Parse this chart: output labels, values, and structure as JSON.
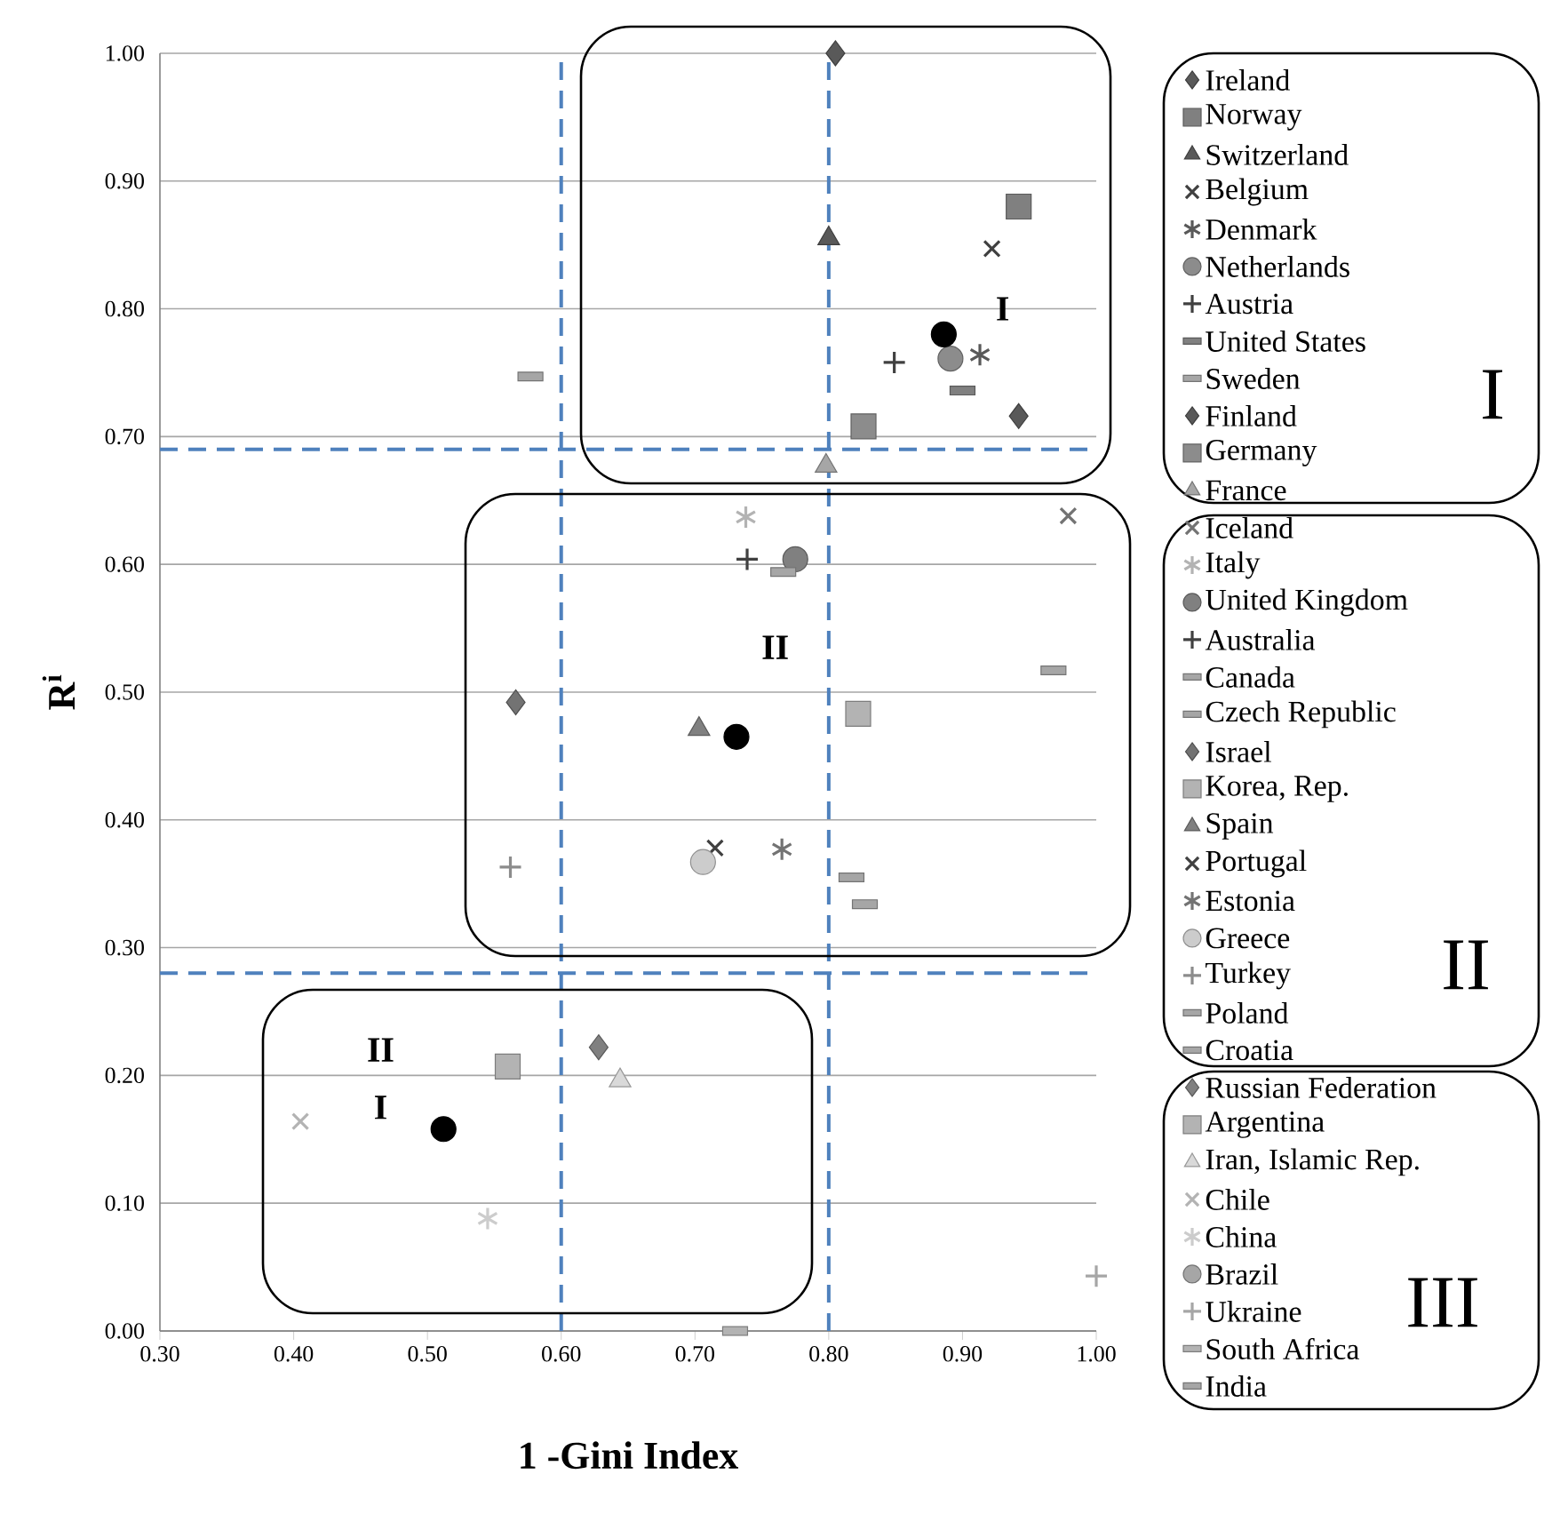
{
  "chart_data": {
    "type": "scatter",
    "xlabel": "1 -Gini Index",
    "ylabel": "R$^{i}$",
    "xlim": [
      0.3,
      1.0
    ],
    "ylim": [
      0,
      1.0
    ],
    "xticks": [
      {
        "value": 0.3,
        "label": "0.30"
      },
      {
        "value": 0.4,
        "label": "0.40"
      },
      {
        "value": 0.5,
        "label": "0.50"
      },
      {
        "value": 0.6,
        "label": "0.60"
      },
      {
        "value": 0.7,
        "label": "0.70"
      },
      {
        "value": 0.8,
        "label": "0.80"
      },
      {
        "value": 0.9,
        "label": "0.90"
      },
      {
        "value": 1.0,
        "label": "1.00"
      }
    ],
    "yticks": [
      {
        "value": 0,
        "label": "0.00"
      },
      {
        "value": 0.1,
        "label": "0.10"
      },
      {
        "value": 0.2,
        "label": "0.20"
      },
      {
        "value": 0.3,
        "label": "0.30"
      },
      {
        "value": 0.4,
        "label": "0.40"
      },
      {
        "value": 0.5,
        "label": "0.50"
      },
      {
        "value": 0.6,
        "label": "0.60"
      },
      {
        "value": 0.7,
        "label": "0.70"
      },
      {
        "value": 0.8,
        "label": "0.80"
      },
      {
        "value": 0.9,
        "label": "0.90"
      },
      {
        "value": 1.0,
        "label": "1.00"
      }
    ],
    "grid": "y",
    "legend": "right",
    "ref_lines": [
      {
        "axis": "y",
        "value": 0.69,
        "color": "#4f81bd",
        "line_style": "dashed"
      },
      {
        "axis": "y",
        "value": 0.28,
        "color": "#4f81bd",
        "line_style": "dashed"
      },
      {
        "axis": "x",
        "value": 0.6,
        "color": "#4f81bd",
        "line_style": "dashed"
      },
      {
        "axis": "x",
        "value": 0.8,
        "color": "#4f81bd",
        "line_style": "dashed"
      }
    ],
    "annotations": [
      "I",
      "II",
      "II",
      "I",
      "I",
      "II",
      "III"
    ],
    "series": [
      {
        "name": "Ireland",
        "marker": "diamond",
        "color": "#595959",
        "x": [
          0.805
        ],
        "values": [
          1.0
        ]
      },
      {
        "name": "Norway",
        "marker": "square",
        "color": "#808080",
        "x": [
          0.942
        ],
        "values": [
          0.88
        ]
      },
      {
        "name": "Switzerland",
        "marker": "triangle",
        "color": "#595959",
        "x": [
          0.8
        ],
        "values": [
          0.855
        ]
      },
      {
        "name": "Belgium",
        "marker": "cross",
        "color": "#404040",
        "x": [
          0.922
        ],
        "values": [
          0.847
        ]
      },
      {
        "name": "Denmark",
        "marker": "cross",
        "color": "#595959",
        "x": [
          0.913
        ],
        "values": [
          0.764
        ]
      },
      {
        "name": "Netherlands",
        "marker": "circle",
        "color": "#8c8c8c",
        "x": [
          0.891
        ],
        "values": [
          0.761
        ]
      },
      {
        "name": "Austria",
        "marker": "plus",
        "color": "#404040",
        "x": [
          0.849
        ],
        "values": [
          0.758
        ]
      },
      {
        "name": "United States",
        "marker": "square",
        "color": "#808080",
        "x": [
          0.9
        ],
        "values": [
          0.736
        ]
      },
      {
        "name": "Sweden",
        "marker": "square",
        "color": "#a6a6a6",
        "x": [
          0.577
        ],
        "values": [
          0.747
        ]
      },
      {
        "name": "Finland",
        "marker": "diamond",
        "color": "#595959",
        "x": [
          0.942
        ],
        "values": [
          0.716
        ]
      },
      {
        "name": "Germany",
        "marker": "square",
        "color": "#8c8c8c",
        "x": [
          0.826
        ],
        "values": [
          0.708
        ]
      },
      {
        "name": "France",
        "marker": "triangle",
        "color": "#a6a6a6",
        "x": [
          0.798
        ],
        "values": [
          0.677
        ]
      },
      {
        "name": "Iceland",
        "marker": "cross",
        "color": "#737373",
        "x": [
          0.979
        ],
        "values": [
          0.638
        ]
      },
      {
        "name": "Italy",
        "marker": "cross",
        "color": "#b3b3b3",
        "x": [
          0.738
        ],
        "values": [
          0.637
        ]
      },
      {
        "name": "United Kingdom",
        "marker": "circle",
        "color": "#808080",
        "x": [
          0.775
        ],
        "values": [
          0.604
        ]
      },
      {
        "name": "Australia",
        "marker": "plus",
        "color": "#404040",
        "x": [
          0.739
        ],
        "values": [
          0.604
        ]
      },
      {
        "name": "Canada",
        "marker": "square",
        "color": "#a6a6a6",
        "x": [
          0.968
        ],
        "values": [
          0.517
        ]
      },
      {
        "name": "Czech Republic",
        "marker": "square",
        "color": "#a6a6a6",
        "x": [
          0.766
        ],
        "values": [
          0.594
        ]
      },
      {
        "name": "Israel",
        "marker": "diamond",
        "color": "#737373",
        "x": [
          0.566
        ],
        "values": [
          0.492
        ]
      },
      {
        "name": "Korea, Rep.",
        "marker": "square",
        "color": "#b3b3b3",
        "x": [
          0.822
        ],
        "values": [
          0.483
        ]
      },
      {
        "name": "Spain",
        "marker": "triangle",
        "color": "#808080",
        "x": [
          0.703
        ],
        "values": [
          0.471
        ]
      },
      {
        "name": "Portugal",
        "marker": "cross",
        "color": "#404040",
        "x": [
          0.715
        ],
        "values": [
          0.378
        ]
      },
      {
        "name": "Estonia",
        "marker": "cross",
        "color": "#737373",
        "x": [
          0.765
        ],
        "values": [
          0.377
        ]
      },
      {
        "name": "Greece",
        "marker": "circle",
        "color": "#cccccc",
        "x": [
          0.706
        ],
        "values": [
          0.367
        ]
      },
      {
        "name": "Turkey",
        "marker": "plus",
        "color": "#8c8c8c",
        "x": [
          0.562
        ],
        "values": [
          0.363
        ]
      },
      {
        "name": "Poland",
        "marker": "square",
        "color": "#a6a6a6",
        "x": [
          0.827
        ],
        "values": [
          0.334
        ]
      },
      {
        "name": "Croatia",
        "marker": "square",
        "color": "#a6a6a6",
        "x": [
          0.817
        ],
        "values": [
          0.355
        ]
      },
      {
        "name": "Russian Federation",
        "marker": "diamond",
        "color": "#808080",
        "x": [
          0.628
        ],
        "values": [
          0.222
        ]
      },
      {
        "name": "Argentina",
        "marker": "square",
        "color": "#b3b3b3",
        "x": [
          0.56
        ],
        "values": [
          0.207
        ]
      },
      {
        "name": "Iran, Islamic Rep.",
        "marker": "triangle",
        "color": "#d9d9d9",
        "x": [
          0.644
        ],
        "values": [
          0.196
        ]
      },
      {
        "name": "Chile",
        "marker": "cross",
        "color": "#b3b3b3",
        "x": [
          0.405
        ],
        "values": [
          0.164
        ]
      },
      {
        "name": "China",
        "marker": "cross",
        "color": "#cccccc",
        "x": [
          0.545
        ],
        "values": [
          0.088
        ]
      },
      {
        "name": "Brazil",
        "marker": "circle",
        "color": "#a6a6a6",
        "x": [
          null
        ],
        "values": [
          null
        ]
      },
      {
        "name": "Ukraine",
        "marker": "plus",
        "color": "#a6a6a6",
        "x": [
          1.0
        ],
        "values": [
          0.043
        ]
      },
      {
        "name": "South Africa",
        "marker": "square",
        "color": "#b3b3b3",
        "x": [
          0.73
        ],
        "values": [
          0.0
        ]
      },
      {
        "name": "India",
        "marker": "square",
        "color": "#a6a6a6",
        "x": [
          null
        ],
        "values": [
          null
        ]
      },
      {
        "marker": "circle",
        "color": "#000000",
        "x": [
          0.886,
          0.731,
          0.512
        ],
        "values": [
          0.78,
          0.465,
          0.158
        ]
      }
    ]
  }
}
